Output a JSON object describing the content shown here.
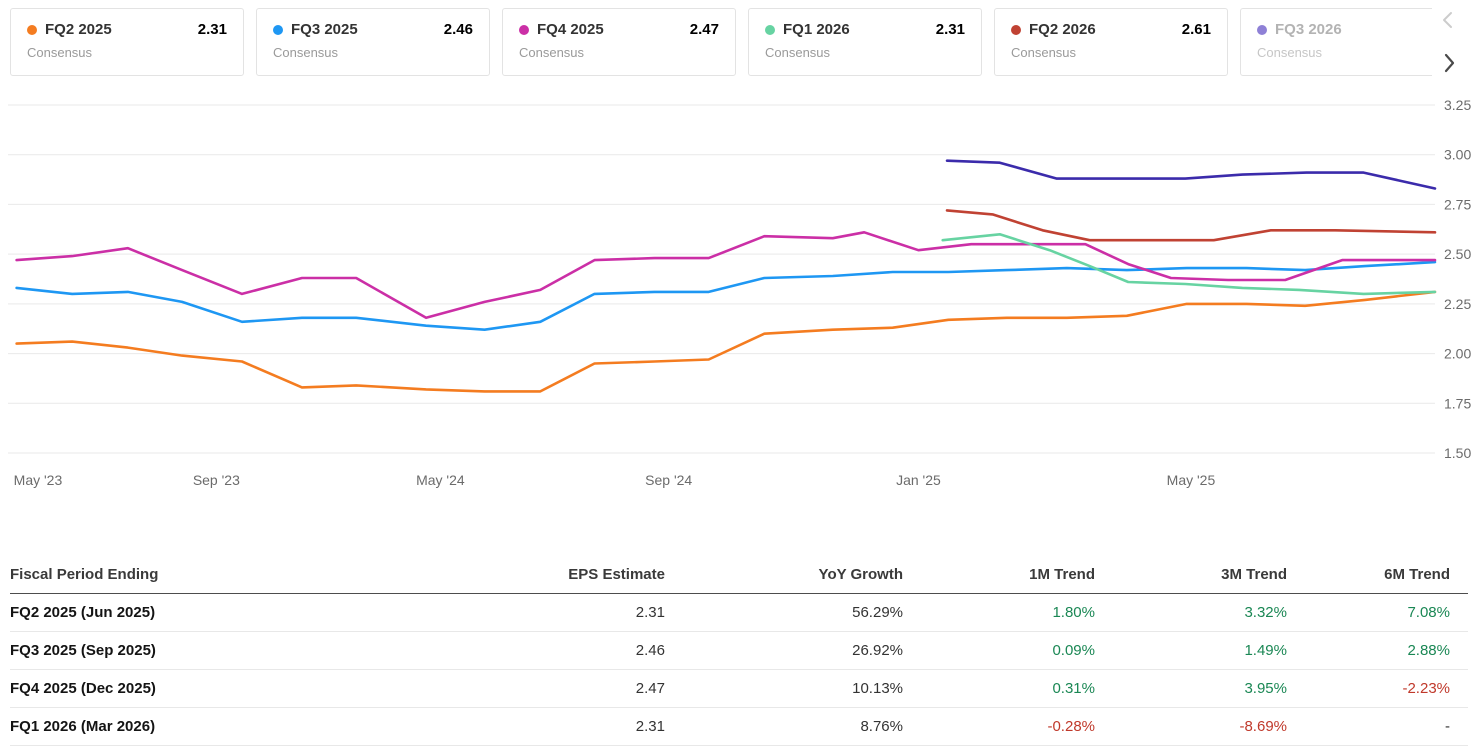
{
  "colors": {
    "positive": "#1a8754",
    "negative": "#c0392b",
    "grid": "#e9e9e9",
    "axis_text": "#6b6b6b"
  },
  "legend": {
    "cards": [
      {
        "label": "FQ2 2025",
        "sublabel": "Consensus",
        "value": "2.31",
        "color": "#f47c20"
      },
      {
        "label": "FQ3 2025",
        "sublabel": "Consensus",
        "value": "2.46",
        "color": "#1e97f3"
      },
      {
        "label": "FQ4 2025",
        "sublabel": "Consensus",
        "value": "2.47",
        "color": "#cb2fa6"
      },
      {
        "label": "FQ1 2026",
        "sublabel": "Consensus",
        "value": "2.31",
        "color": "#67d3a2"
      },
      {
        "label": "FQ2 2026",
        "sublabel": "Consensus",
        "value": "2.61",
        "color": "#c04233"
      },
      {
        "label": "FQ3 2026",
        "sublabel": "Consensus",
        "value": "",
        "color": "#8e80d6"
      }
    ],
    "prev_icon": "chevron-left",
    "next_icon": "chevron-right"
  },
  "chart_data": {
    "type": "line",
    "title": "EPS consensus estimate revisions by fiscal quarter",
    "ylim": [
      1.5,
      3.25
    ],
    "grid": true,
    "legend_position": "top",
    "y_ticks": [
      {
        "v": 3.25,
        "label": "3.25"
      },
      {
        "v": 3.0,
        "label": "3.00"
      },
      {
        "v": 2.75,
        "label": "2.75"
      },
      {
        "v": 2.5,
        "label": "2.50"
      },
      {
        "v": 2.25,
        "label": "2.25"
      },
      {
        "v": 2.0,
        "label": "2.00"
      },
      {
        "v": 1.75,
        "label": "1.75"
      },
      {
        "v": 1.5,
        "label": "1.50"
      }
    ],
    "x_ticks": [
      {
        "pos": 2.1,
        "label": "May '23"
      },
      {
        "pos": 14.6,
        "label": "Sep '23"
      },
      {
        "pos": 30.3,
        "label": "May '24"
      },
      {
        "pos": 46.3,
        "label": "Sep '24"
      },
      {
        "pos": 63.8,
        "label": "Jan '25"
      },
      {
        "pos": 82.9,
        "label": "May '25"
      }
    ],
    "series": [
      {
        "name": "FQ2 2025 Consensus",
        "color": "#f47c20",
        "points": [
          [
            0.6,
            2.05
          ],
          [
            4.5,
            2.06
          ],
          [
            8.4,
            2.03
          ],
          [
            12.2,
            1.99
          ],
          [
            16.4,
            1.96
          ],
          [
            20.6,
            1.83
          ],
          [
            24.4,
            1.84
          ],
          [
            29.3,
            1.82
          ],
          [
            33.4,
            1.81
          ],
          [
            37.3,
            1.81
          ],
          [
            41.1,
            1.95
          ],
          [
            45.3,
            1.96
          ],
          [
            49.1,
            1.97
          ],
          [
            53.0,
            2.1
          ],
          [
            57.8,
            2.12
          ],
          [
            62.0,
            2.13
          ],
          [
            65.9,
            2.17
          ],
          [
            70.0,
            2.18
          ],
          [
            74.2,
            2.18
          ],
          [
            78.4,
            2.19
          ],
          [
            82.6,
            2.25
          ],
          [
            86.8,
            2.25
          ],
          [
            90.9,
            2.24
          ],
          [
            95.1,
            2.27
          ],
          [
            100,
            2.31
          ]
        ]
      },
      {
        "name": "FQ3 2025 Consensus",
        "color": "#1e97f3",
        "points": [
          [
            0.6,
            2.33
          ],
          [
            4.5,
            2.3
          ],
          [
            8.4,
            2.31
          ],
          [
            12.2,
            2.26
          ],
          [
            16.4,
            2.16
          ],
          [
            20.6,
            2.18
          ],
          [
            24.4,
            2.18
          ],
          [
            29.3,
            2.14
          ],
          [
            33.4,
            2.12
          ],
          [
            37.3,
            2.16
          ],
          [
            41.1,
            2.3
          ],
          [
            45.3,
            2.31
          ],
          [
            49.1,
            2.31
          ],
          [
            53.0,
            2.38
          ],
          [
            57.8,
            2.39
          ],
          [
            62.0,
            2.41
          ],
          [
            65.9,
            2.41
          ],
          [
            70.0,
            2.42
          ],
          [
            74.2,
            2.43
          ],
          [
            78.4,
            2.42
          ],
          [
            82.6,
            2.43
          ],
          [
            86.8,
            2.43
          ],
          [
            90.9,
            2.42
          ],
          [
            95.1,
            2.44
          ],
          [
            100,
            2.46
          ]
        ]
      },
      {
        "name": "FQ4 2025 Consensus",
        "color": "#cb2fa6",
        "points": [
          [
            0.6,
            2.47
          ],
          [
            4.5,
            2.49
          ],
          [
            8.4,
            2.53
          ],
          [
            12.2,
            2.42
          ],
          [
            16.4,
            2.3
          ],
          [
            20.6,
            2.38
          ],
          [
            24.4,
            2.38
          ],
          [
            29.3,
            2.18
          ],
          [
            33.4,
            2.26
          ],
          [
            37.3,
            2.32
          ],
          [
            41.1,
            2.47
          ],
          [
            45.3,
            2.48
          ],
          [
            49.1,
            2.48
          ],
          [
            53.0,
            2.59
          ],
          [
            57.8,
            2.58
          ],
          [
            60.0,
            2.61
          ],
          [
            63.8,
            2.52
          ],
          [
            67.5,
            2.55
          ],
          [
            71.5,
            2.55
          ],
          [
            75.5,
            2.55
          ],
          [
            78.5,
            2.45
          ],
          [
            81.5,
            2.38
          ],
          [
            85.5,
            2.37
          ],
          [
            89.5,
            2.37
          ],
          [
            93.5,
            2.47
          ],
          [
            100,
            2.47
          ]
        ]
      },
      {
        "name": "FQ1 2026 Consensus",
        "color": "#67d3a2",
        "points": [
          [
            65.5,
            2.57
          ],
          [
            69.5,
            2.6
          ],
          [
            73.0,
            2.52
          ],
          [
            75.8,
            2.44
          ],
          [
            78.5,
            2.36
          ],
          [
            82.5,
            2.35
          ],
          [
            86.5,
            2.33
          ],
          [
            90.5,
            2.32
          ],
          [
            95.0,
            2.3
          ],
          [
            100,
            2.31
          ]
        ]
      },
      {
        "name": "FQ2 2026 Consensus",
        "color": "#c04233",
        "points": [
          [
            65.8,
            2.72
          ],
          [
            69.0,
            2.7
          ],
          [
            72.5,
            2.62
          ],
          [
            75.8,
            2.57
          ],
          [
            80.0,
            2.57
          ],
          [
            84.5,
            2.57
          ],
          [
            88.5,
            2.62
          ],
          [
            93.0,
            2.62
          ],
          [
            100,
            2.61
          ]
        ]
      },
      {
        "name": "FQ3 2026 Consensus",
        "color": "#3b2bab",
        "points": [
          [
            65.8,
            2.97
          ],
          [
            69.5,
            2.96
          ],
          [
            73.5,
            2.88
          ],
          [
            78.0,
            2.88
          ],
          [
            82.5,
            2.88
          ],
          [
            86.5,
            2.9
          ],
          [
            91.0,
            2.91
          ],
          [
            95.0,
            2.91
          ],
          [
            100,
            2.83
          ]
        ]
      }
    ]
  },
  "table": {
    "headers": [
      "Fiscal Period Ending",
      "EPS Estimate",
      "YoY Growth",
      "1M Trend",
      "3M Trend",
      "6M Trend"
    ],
    "rows": [
      {
        "period": "FQ2 2025 (Jun 2025)",
        "eps": "2.31",
        "yoy": "56.29%",
        "m1": "1.80%",
        "m3": "3.32%",
        "m6": "7.08%"
      },
      {
        "period": "FQ3 2025 (Sep 2025)",
        "eps": "2.46",
        "yoy": "26.92%",
        "m1": "0.09%",
        "m3": "1.49%",
        "m6": "2.88%"
      },
      {
        "period": "FQ4 2025 (Dec 2025)",
        "eps": "2.47",
        "yoy": "10.13%",
        "m1": "0.31%",
        "m3": "3.95%",
        "m6": "-2.23%"
      },
      {
        "period": "FQ1 2026 (Mar 2026)",
        "eps": "2.31",
        "yoy": "8.76%",
        "m1": "-0.28%",
        "m3": "-8.69%",
        "m6": "-"
      }
    ]
  }
}
